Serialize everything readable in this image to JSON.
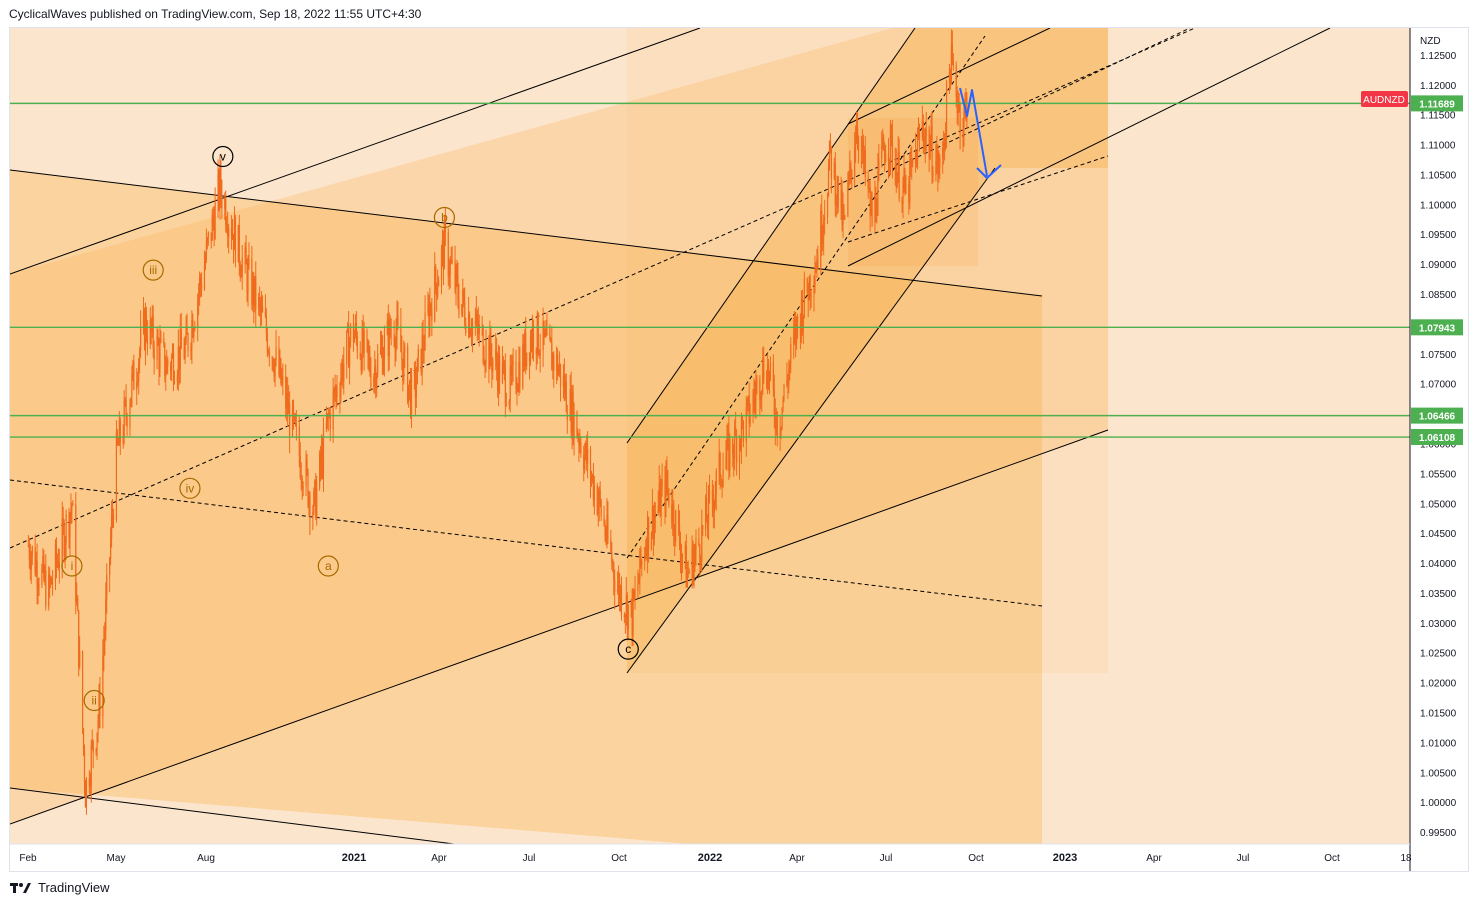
{
  "header": {
    "publisher_line": "CyclicalWaves published on TradingView.com, Sep 18, 2022 11:55 UTC+4:30"
  },
  "footer": {
    "brand": "TradingView",
    "logo_icon": "tradingview-logo-icon"
  },
  "colors": {
    "background": "#fce5cd",
    "channel_fill": "#fbcb8f",
    "candle": "#f06a1d",
    "hline": "#4caf50",
    "symbol_badge": "#f23645",
    "arrow": "#2962ff",
    "axis_text": "#131722"
  },
  "chart_data": {
    "type": "candlestick",
    "symbol": "AUDNZD",
    "currency": "NZD",
    "x_axis_labels": [
      "Feb",
      "May",
      "Aug",
      "2021",
      "Apr",
      "Jul",
      "Oct",
      "2022",
      "Apr",
      "Jul",
      "Oct",
      "2023",
      "Apr",
      "Jul",
      "Oct",
      "18"
    ],
    "y_axis_labels": [
      "1.12500",
      "1.12000",
      "1.11500",
      "1.11000",
      "1.10500",
      "1.10000",
      "1.09500",
      "1.09000",
      "1.08500",
      "1.08000",
      "1.07500",
      "1.07000",
      "1.06500",
      "1.06000",
      "1.05500",
      "1.05000",
      "1.04500",
      "1.04000",
      "1.03500",
      "1.03000",
      "1.02500",
      "1.02000",
      "1.01500",
      "1.01000",
      "1.00500",
      "1.00000",
      "0.99500"
    ],
    "y_range": [
      0.993,
      1.1295
    ],
    "horizontal_levels": [
      {
        "value": 1.11689,
        "label": "1.11689"
      },
      {
        "value": 1.07943,
        "label": "1.07943"
      },
      {
        "value": 1.06466,
        "label": "1.06466"
      },
      {
        "value": 1.06108,
        "label": "1.06108"
      }
    ],
    "last_price_badge": "AUDNZD",
    "wave_labels": [
      "i",
      "ii",
      "iii",
      "iv",
      "v",
      "a",
      "b",
      "c"
    ],
    "price_path": [
      [
        "2020-01-20",
        1.043
      ],
      [
        "2020-02-10",
        1.035
      ],
      [
        "2020-03-05",
        1.05
      ],
      [
        "2020-03-19",
        1.002
      ],
      [
        "2020-04-02",
        1.015
      ],
      [
        "2020-04-20",
        1.058
      ],
      [
        "2020-05-20",
        1.08
      ],
      [
        "2020-06-10",
        1.073
      ],
      [
        "2020-07-01",
        1.076
      ],
      [
        "2020-07-20",
        1.09
      ],
      [
        "2020-08-05",
        1.103
      ],
      [
        "2020-08-25",
        1.092
      ],
      [
        "2020-09-15",
        1.082
      ],
      [
        "2020-10-01",
        1.074
      ],
      [
        "2020-10-20",
        1.062
      ],
      [
        "2020-11-10",
        1.049
      ],
      [
        "2020-11-25",
        1.064
      ],
      [
        "2020-12-20",
        1.079
      ],
      [
        "2021-01-10",
        1.072
      ],
      [
        "2021-02-01",
        1.08
      ],
      [
        "2021-02-20",
        1.067
      ],
      [
        "2021-03-10",
        1.083
      ],
      [
        "2021-03-25",
        1.093
      ],
      [
        "2021-04-10",
        1.084
      ],
      [
        "2021-05-01",
        1.078
      ],
      [
        "2021-06-01",
        1.069
      ],
      [
        "2021-06-25",
        1.079
      ],
      [
        "2021-07-20",
        1.073
      ],
      [
        "2021-08-10",
        1.062
      ],
      [
        "2021-09-01",
        1.05
      ],
      [
        "2021-09-20",
        1.036
      ],
      [
        "2021-10-05",
        1.031
      ],
      [
        "2021-10-20",
        1.045
      ],
      [
        "2021-11-10",
        1.053
      ],
      [
        "2021-12-01",
        1.038
      ],
      [
        "2021-12-15",
        1.044
      ],
      [
        "2022-01-05",
        1.056
      ],
      [
        "2022-02-01",
        1.064
      ],
      [
        "2022-02-20",
        1.074
      ],
      [
        "2022-03-05",
        1.063
      ],
      [
        "2022-03-25",
        1.08
      ],
      [
        "2022-04-15",
        1.092
      ],
      [
        "2022-04-28",
        1.108
      ],
      [
        "2022-05-12",
        1.096
      ],
      [
        "2022-05-25",
        1.114
      ],
      [
        "2022-06-10",
        1.097
      ],
      [
        "2022-06-25",
        1.112
      ],
      [
        "2022-07-15",
        1.101
      ],
      [
        "2022-08-01",
        1.113
      ],
      [
        "2022-08-20",
        1.105
      ],
      [
        "2022-08-30",
        1.124
      ],
      [
        "2022-09-12",
        1.113
      ],
      [
        "2022-09-18",
        1.12
      ]
    ]
  }
}
